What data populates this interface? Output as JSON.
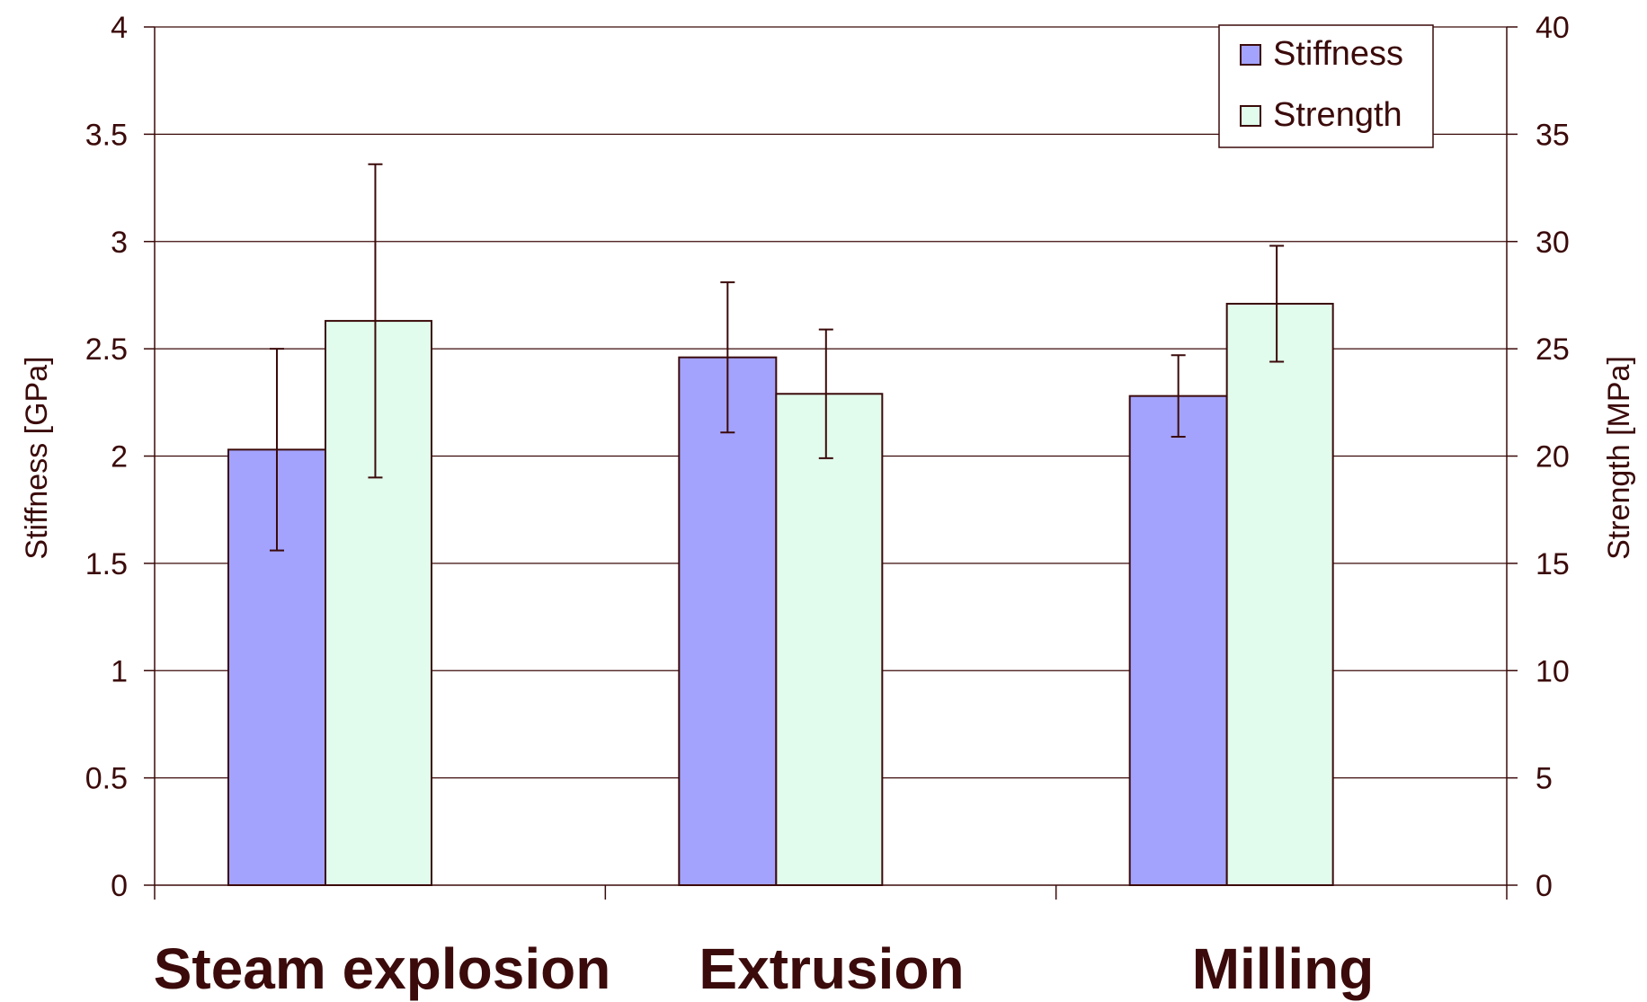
{
  "chart_data": {
    "type": "bar",
    "title": "",
    "categories": [
      "Steam explosion",
      "Extrusion",
      "Milling"
    ],
    "y_left": {
      "label": "Stiffness [GPa]",
      "min": 0,
      "max": 4,
      "ticks": [
        0,
        0.5,
        1,
        1.5,
        2,
        2.5,
        3,
        3.5,
        4
      ]
    },
    "y_right": {
      "label": "Strength [MPa]",
      "min": 0,
      "max": 40,
      "ticks": [
        0,
        5,
        10,
        15,
        20,
        25,
        30,
        35,
        40
      ]
    },
    "grid": true,
    "legend": {
      "placement": "top-right"
    },
    "series": [
      {
        "name": "Stiffness",
        "axis": "left",
        "color": "#a3a3fd",
        "values": [
          2.03,
          2.46,
          2.28
        ],
        "error_low": [
          1.56,
          2.11,
          2.09
        ],
        "error_high": [
          2.5,
          2.81,
          2.47
        ]
      },
      {
        "name": "Strength",
        "axis": "right",
        "color": "#e1fbec",
        "values": [
          26.3,
          22.9,
          27.1
        ],
        "error_low": [
          19.0,
          19.9,
          24.4
        ],
        "error_high": [
          33.6,
          25.9,
          29.8
        ]
      }
    ],
    "colors": {
      "axis": "#3b0a0a",
      "grid": "#3b0a0a",
      "bar_stroke": "#3b0a0a"
    }
  }
}
